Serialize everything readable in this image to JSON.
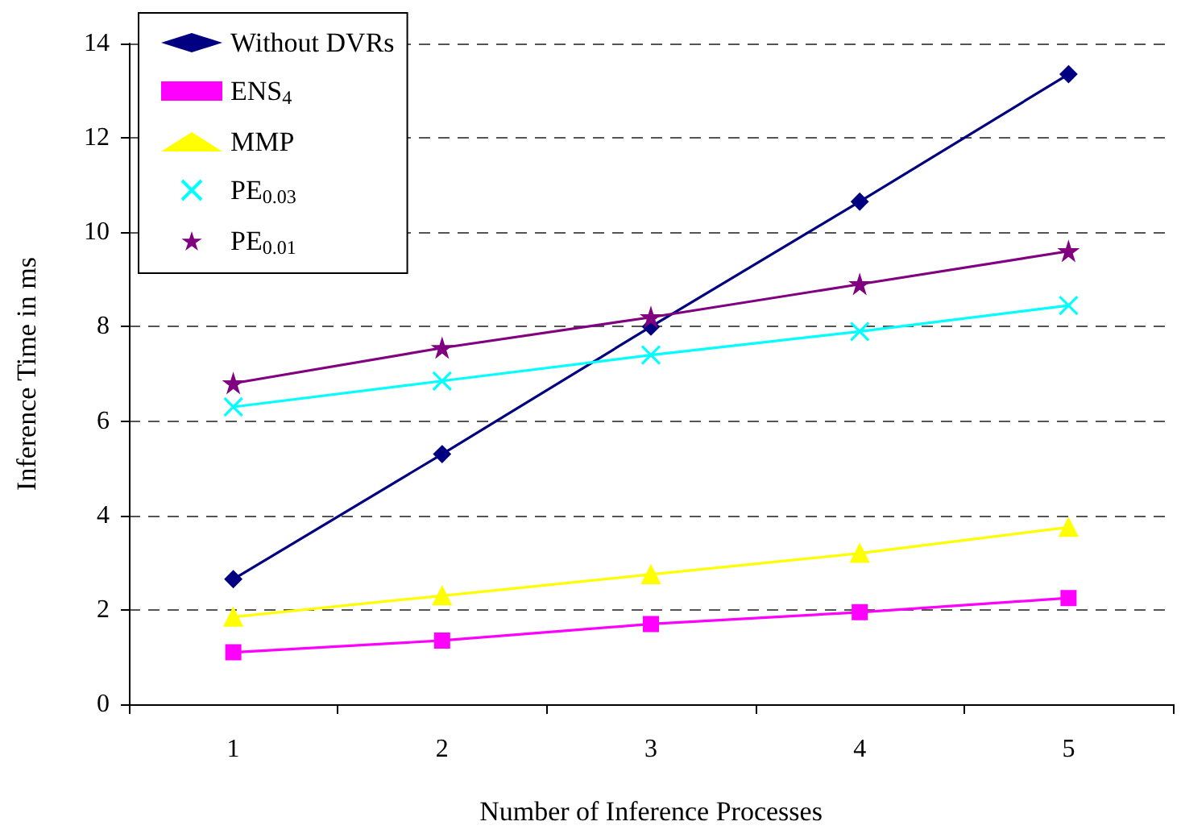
{
  "chart_data": {
    "type": "line",
    "xlabel": "Number of Inference Processes",
    "ylabel": "Inference Time in ms",
    "categories": [
      "1",
      "2",
      "3",
      "4",
      "5"
    ],
    "ylim": [
      0,
      14
    ],
    "yticks": [
      0,
      2,
      4,
      6,
      8,
      10,
      12,
      14
    ],
    "grid": "y",
    "legend": "top left",
    "line_style": "solid",
    "series": [
      {
        "name": "Without DVRs",
        "color": "#000080",
        "marker": "diamond",
        "values": [
          2.65,
          5.3,
          8.0,
          10.65,
          13.35
        ]
      },
      {
        "name": "ENS$_{4}$",
        "color": "#ff00ff",
        "marker": "square",
        "values": [
          1.1,
          1.35,
          1.7,
          1.95,
          2.25
        ]
      },
      {
        "name": "MMP",
        "color": "#ffff00",
        "marker": "triangle",
        "values": [
          1.85,
          2.3,
          2.75,
          3.2,
          3.75
        ]
      },
      {
        "name": "PE$_{0.03}$",
        "color": "#00ffff",
        "marker": "cross",
        "values": [
          6.3,
          6.85,
          7.4,
          7.9,
          8.45
        ]
      },
      {
        "name": "PE$_{0.01}$",
        "color": "#800080",
        "marker": "star",
        "values": [
          6.8,
          7.55,
          8.2,
          8.9,
          9.6
        ]
      }
    ]
  }
}
